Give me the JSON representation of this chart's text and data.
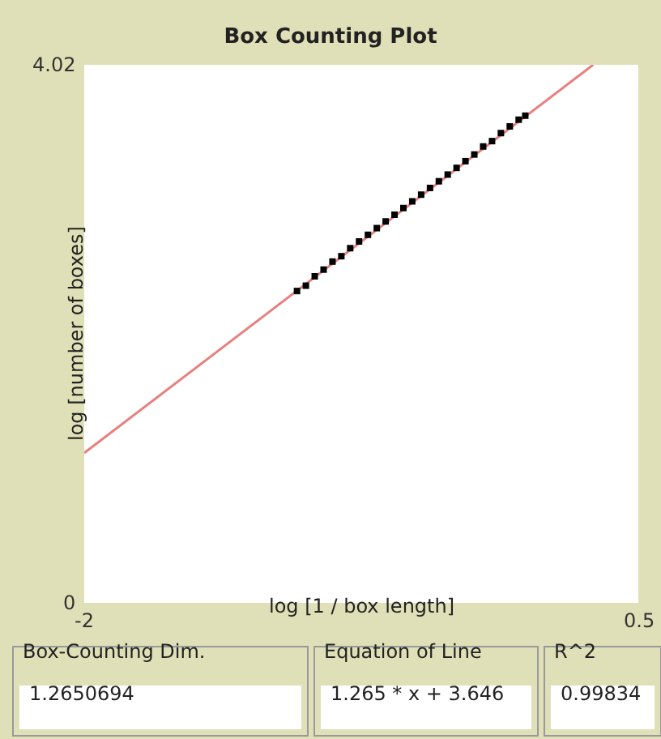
{
  "chart_data": {
    "type": "scatter",
    "title": "Box Counting Plot",
    "xlabel": "log [1 / box length]",
    "ylabel": "log [number of boxes]",
    "xlim": [
      -2,
      0.5
    ],
    "xticks": [
      -2,
      0.5
    ],
    "ylim": [
      0,
      4.02
    ],
    "yticks": [
      0,
      4.02
    ],
    "series": [
      {
        "marker": "square",
        "color": "#000000",
        "x": [
          -1.04,
          -1.0,
          -0.96,
          -0.92,
          -0.88,
          -0.84,
          -0.8,
          -0.76,
          -0.72,
          -0.68,
          -0.64,
          -0.6,
          -0.56,
          -0.52,
          -0.48,
          -0.44,
          -0.4,
          -0.36,
          -0.32,
          -0.28,
          -0.24,
          -0.2,
          -0.16,
          -0.12,
          -0.08,
          -0.04,
          -0.01
        ],
        "values": [
          2.33,
          2.37,
          2.44,
          2.49,
          2.55,
          2.59,
          2.65,
          2.7,
          2.75,
          2.8,
          2.85,
          2.9,
          2.95,
          3.0,
          3.05,
          3.1,
          3.15,
          3.2,
          3.25,
          3.3,
          3.35,
          3.41,
          3.45,
          3.51,
          3.56,
          3.61,
          3.64
        ]
      },
      {
        "type": "line",
        "marker": "none",
        "line_style": "solid",
        "color": "#e88080",
        "x": [
          -2,
          0.296
        ],
        "values": [
          1.12,
          4.02
        ]
      }
    ],
    "annotations": [
      "Box-Counting Dim.",
      "1.2650694",
      "Equation of Line",
      "1.265 * x + 3.646",
      "R^2",
      "0.99834"
    ]
  }
}
